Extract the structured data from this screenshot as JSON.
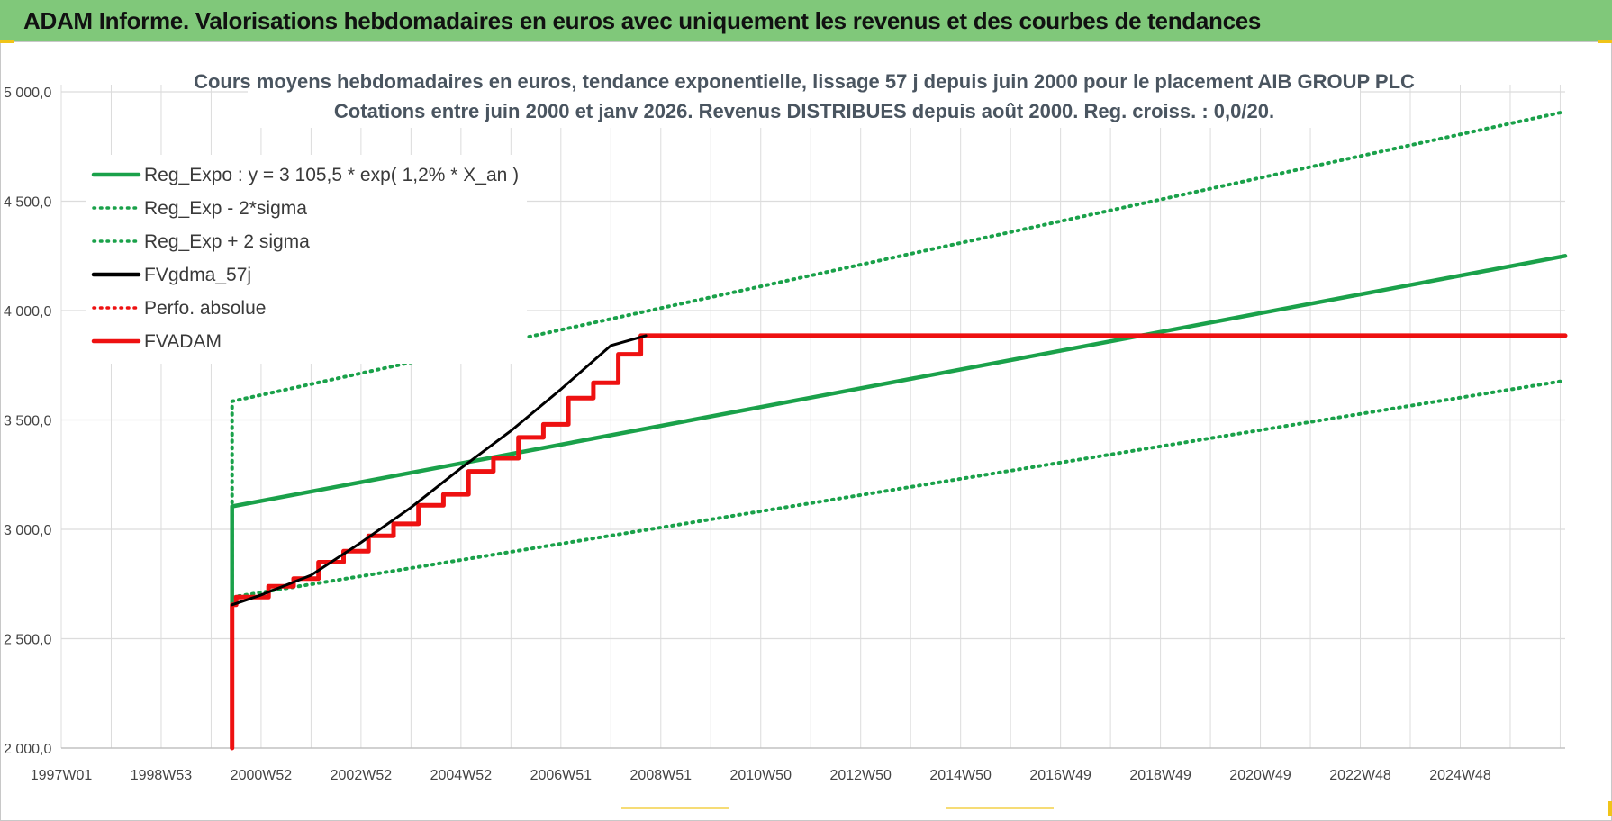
{
  "header": {
    "title": "ADAM Informe. Valorisations hebdomadaires en euros avec uniquement les revenus et des courbes de tendances"
  },
  "colors": {
    "header_bg": "#80c87a",
    "green": "#1aa14a",
    "red": "#ee1111",
    "black": "#000000",
    "grid": "#dcdcdc"
  },
  "chart_data": {
    "type": "line",
    "title": "Cours moyens hebdomadaires en euros, tendance exponentielle, lissage 57 j depuis juin 2000 pour le placement AIB GROUP PLC",
    "subtitle": "Cotations entre juin 2000 et janv 2026.  Revenus DISTRIBUES depuis août 2000.  Reg. croiss. : 0,0/20.",
    "xlabel": "",
    "ylabel": "",
    "xlim": [
      1997.0,
      2027.1
    ],
    "ylim": [
      2000,
      5000
    ],
    "yticks": [
      2000,
      2500,
      3000,
      3500,
      4000,
      4500,
      5000
    ],
    "ytick_labels": [
      "2 000,0",
      "2 500,0",
      "3 000,0",
      "3 500,0",
      "4 000,0",
      "4 500,0",
      "5 000,0"
    ],
    "xtick_labels": [
      "1997W01",
      "1998W53",
      "2000W52",
      "2002W52",
      "2004W52",
      "2006W51",
      "2008W51",
      "2010W50",
      "2012W50",
      "2014W50",
      "2016W49",
      "2018W49",
      "2020W49",
      "2022W48",
      "2024W48"
    ],
    "grid": true,
    "legend_position": "top-left",
    "legend": [
      {
        "label": "Reg_Expo : y = 3 105,5 * exp( 1,2% *  X_an )",
        "color": "#1aa14a",
        "style": "solid"
      },
      {
        "label": "Reg_Exp - 2*sigma",
        "color": "#1aa14a",
        "style": "dotted"
      },
      {
        "label": "Reg_Exp + 2 sigma",
        "color": "#1aa14a",
        "style": "dotted"
      },
      {
        "label": "FVgdma_57j",
        "color": "#000000",
        "style": "solid"
      },
      {
        "label": "Perfo. absolue",
        "color": "#ee1111",
        "style": "dotted"
      },
      {
        "label": "FVADAM",
        "color": "#ee1111",
        "style": "solid"
      }
    ],
    "series": [
      {
        "name": "Reg_Expo : y = 3 105,5 * exp( 1,2% *  X_an )",
        "x": [
          2000.42,
          2000.42,
          2027.1
        ],
        "y": [
          2660,
          3105,
          4250
        ]
      },
      {
        "name": "Reg_Exp - 2*sigma",
        "x": [
          2000.42,
          2027.1
        ],
        "y": [
          2690,
          3680
        ]
      },
      {
        "name": "Reg_Exp + 2 sigma",
        "x": [
          2000.42,
          2000.42,
          2027.1
        ],
        "y": [
          2690,
          3585,
          4910
        ]
      },
      {
        "name": "FVgdma_57j",
        "x": [
          2000.42,
          2001.0,
          2002.0,
          2003.0,
          2004.0,
          2005.0,
          2006.0,
          2007.0,
          2008.0,
          2008.7
        ],
        "y": [
          2655,
          2700,
          2790,
          2940,
          3100,
          3280,
          3450,
          3640,
          3840,
          3885
        ]
      },
      {
        "name": "FVADAM",
        "x": [
          2000.42,
          2000.42,
          2000.5,
          2000.5,
          2001.15,
          2001.15,
          2001.65,
          2001.65,
          2002.15,
          2002.15,
          2002.65,
          2002.65,
          2003.15,
          2003.15,
          2003.65,
          2003.65,
          2004.15,
          2004.15,
          2004.65,
          2004.65,
          2005.15,
          2005.15,
          2005.65,
          2005.65,
          2006.15,
          2006.15,
          2006.65,
          2006.65,
          2007.15,
          2007.15,
          2007.65,
          2007.65,
          2008.15,
          2008.15,
          2008.6,
          2008.6,
          2027.1
        ],
        "y": [
          2000,
          2655,
          2655,
          2690,
          2690,
          2740,
          2740,
          2775,
          2775,
          2850,
          2850,
          2900,
          2900,
          2970,
          2970,
          3025,
          3025,
          3110,
          3110,
          3160,
          3160,
          3265,
          3265,
          3325,
          3325,
          3420,
          3420,
          3480,
          3480,
          3600,
          3600,
          3670,
          3670,
          3800,
          3800,
          3885,
          3885
        ]
      }
    ]
  }
}
